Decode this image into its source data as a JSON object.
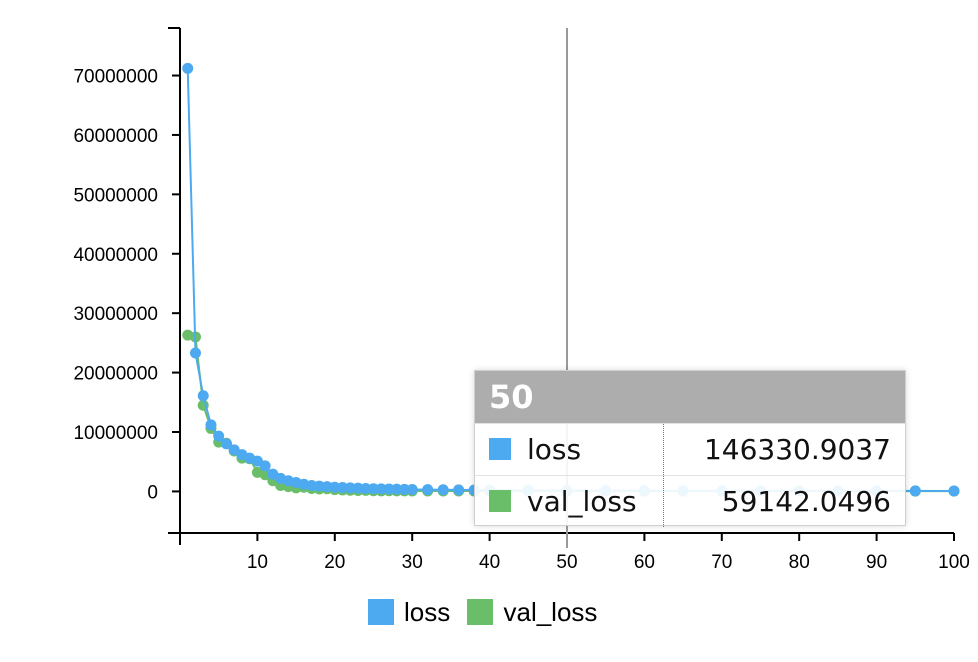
{
  "chart_data": {
    "type": "line",
    "title": "",
    "xlabel": "",
    "ylabel": "",
    "xlim": [
      0,
      100
    ],
    "ylim": [
      -7000000,
      78000000
    ],
    "x_ticks": [
      10,
      20,
      30,
      40,
      50,
      60,
      70,
      80,
      90,
      100
    ],
    "y_ticks": [
      0,
      10000000,
      20000000,
      30000000,
      40000000,
      50000000,
      60000000,
      70000000
    ],
    "x_tick_labels": [
      "10",
      "20",
      "30",
      "40",
      "50",
      "60",
      "70",
      "80",
      "90",
      "100"
    ],
    "y_tick_labels": [
      "0",
      "10000000",
      "20000000",
      "30000000",
      "40000000",
      "50000000",
      "60000000",
      "70000000"
    ],
    "grid": false,
    "legend_position": "bottom-center",
    "hover_x": 50,
    "series": [
      {
        "name": "loss",
        "color": "#4da9f0",
        "x": [
          1,
          2,
          3,
          4,
          5,
          6,
          7,
          8,
          9,
          10,
          11,
          12,
          13,
          14,
          15,
          16,
          17,
          18,
          19,
          20,
          21,
          22,
          23,
          24,
          25,
          26,
          27,
          28,
          29,
          30,
          32,
          34,
          36,
          38,
          40,
          45,
          50,
          55,
          60,
          65,
          70,
          75,
          80,
          85,
          90,
          95,
          100
        ],
        "values": [
          71200000,
          23300000,
          16100000,
          11200000,
          9300000,
          8000000,
          7000000,
          6200000,
          5600000,
          5100000,
          4300000,
          2900000,
          2200000,
          1800000,
          1500000,
          1200000,
          1000000,
          900000,
          800000,
          700000,
          650000,
          600000,
          550000,
          500000,
          450000,
          420000,
          400000,
          380000,
          350000,
          330000,
          300000,
          280000,
          260000,
          240000,
          220000,
          190000,
          146330.9037,
          140000,
          130000,
          120000,
          110000,
          100000,
          95000,
          90000,
          85000,
          80000,
          75000
        ]
      },
      {
        "name": "val_loss",
        "color": "#6abe6a",
        "x": [
          1,
          2,
          3,
          4,
          5,
          6,
          7,
          8,
          9,
          10,
          11,
          12,
          13,
          14,
          15,
          16,
          17,
          18,
          19,
          20,
          21,
          22,
          23,
          24,
          25,
          26,
          27,
          28,
          29,
          30,
          32,
          34,
          36,
          38,
          40,
          45,
          50,
          55,
          60,
          65,
          70,
          75,
          80,
          85,
          90,
          95,
          100
        ],
        "values": [
          26300000,
          26000000,
          14500000,
          10600000,
          8300000,
          8100000,
          6800000,
          5600000,
          5500000,
          3200000,
          2800000,
          1800000,
          1000000,
          800000,
          600000,
          700000,
          500000,
          400000,
          450000,
          300000,
          250000,
          200000,
          150000,
          180000,
          120000,
          100000,
          110000,
          90000,
          95000,
          80000,
          75000,
          70000,
          68000,
          66000,
          64000,
          61000,
          59142.0496,
          58000,
          57000,
          56000,
          55000,
          54000,
          53000,
          52000,
          51000,
          50000,
          49000
        ]
      }
    ]
  },
  "tooltip": {
    "title": "50",
    "rows": [
      {
        "name": "loss",
        "value": "146330.9037",
        "color": "#4da9f0"
      },
      {
        "name": "val_loss",
        "value": "59142.0496",
        "color": "#6abe6a"
      }
    ]
  },
  "legend": [
    {
      "name": "loss",
      "color": "#4da9f0"
    },
    {
      "name": "val_loss",
      "color": "#6abe6a"
    }
  ]
}
